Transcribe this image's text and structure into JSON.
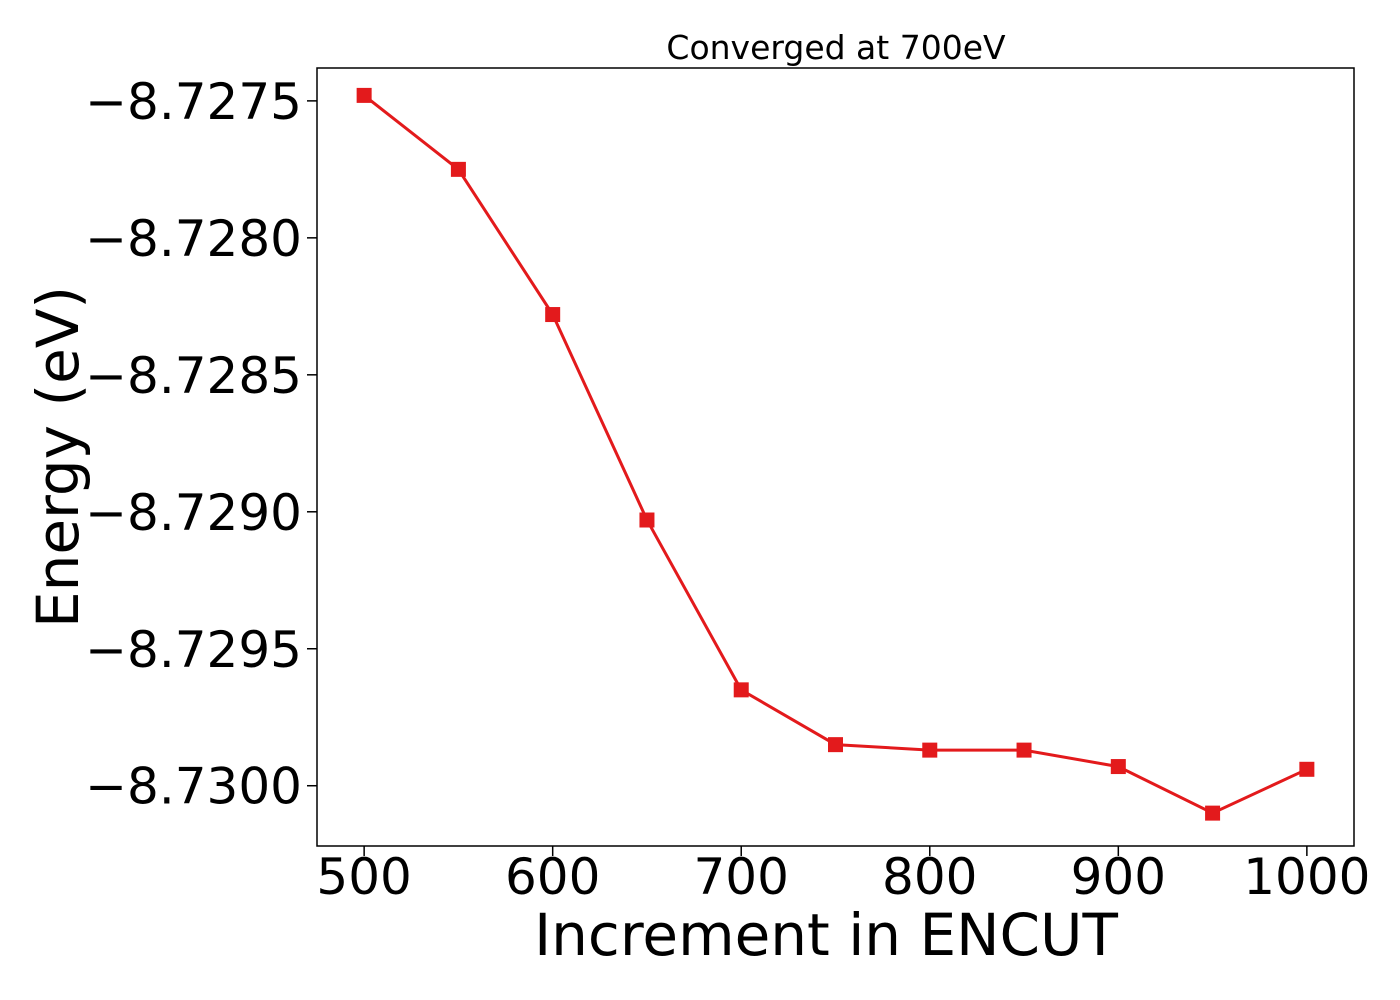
{
  "chart_data": {
    "type": "line",
    "title": "Converged at 700eV",
    "xlabel": "Increment in ENCUT",
    "ylabel": "Energy (eV)",
    "xlim": [
      475,
      1025
    ],
    "ylim": [
      -8.73022,
      -8.72738
    ],
    "x_ticks": [
      500,
      600,
      700,
      800,
      900,
      1000
    ],
    "x_tick_labels": [
      "500",
      "600",
      "700",
      "800",
      "900",
      "1000"
    ],
    "y_ticks": [
      -8.7275,
      -8.728,
      -8.7285,
      -8.729,
      -8.7295,
      -8.73
    ],
    "y_tick_labels": [
      "−8.7275",
      "−8.7280",
      "−8.7285",
      "−8.7290",
      "−8.7295",
      "−8.7300"
    ],
    "grid": false,
    "series": [
      {
        "color": "#e31a1c",
        "marker": "square",
        "x": [
          500,
          550,
          600,
          650,
          700,
          750,
          800,
          850,
          900,
          950,
          1000
        ],
        "y": [
          -8.72748,
          -8.72775,
          -8.72828,
          -8.72903,
          -8.72965,
          -8.72985,
          -8.72987,
          -8.72987,
          -8.72993,
          -8.7301,
          -8.72994
        ]
      }
    ]
  }
}
